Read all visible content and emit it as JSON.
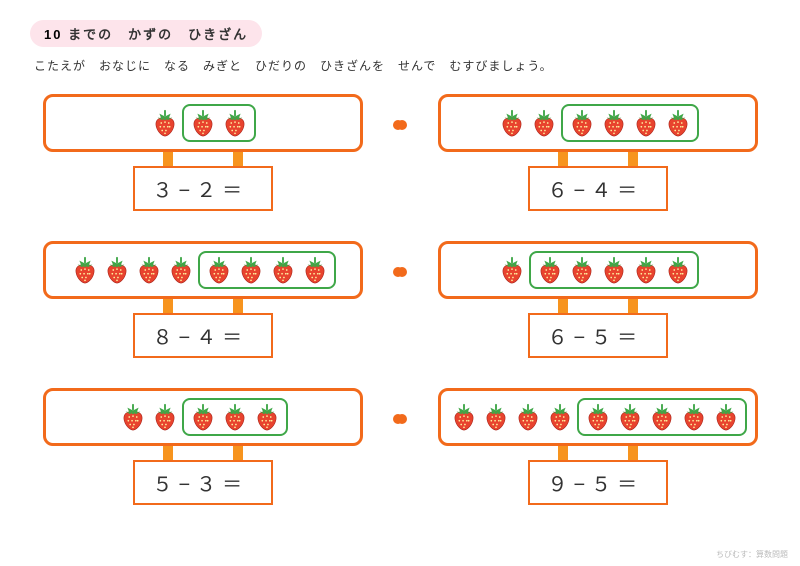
{
  "title_prefix": "10",
  "title_rest": " までの　かずの　ひきざん",
  "instruction": "こたえが　おなじに　なる　みぎと　ひだりの　ひきざんを　せんで　むすびましょう。",
  "colors": {
    "border": "#f26a1b",
    "leg": "#f7941e",
    "dot": "#f26a1b",
    "group": "#3fa748",
    "straw_body": "#e8432e",
    "straw_seed": "#fff3a0",
    "straw_leaf": "#3fa748",
    "title_bg": "#fde4eb"
  },
  "berry_size": 30,
  "problems": [
    {
      "side": "left",
      "total": 3,
      "sub": 2,
      "eq": "３−２＝"
    },
    {
      "side": "right",
      "total": 6,
      "sub": 4,
      "eq": "６−４＝"
    },
    {
      "side": "left",
      "total": 8,
      "sub": 4,
      "eq": "８−４＝"
    },
    {
      "side": "right",
      "total": 6,
      "sub": 5,
      "eq": "６−５＝"
    },
    {
      "side": "left",
      "total": 5,
      "sub": 3,
      "eq": "５−３＝"
    },
    {
      "side": "right",
      "total": 9,
      "sub": 5,
      "eq": "９−５＝"
    }
  ],
  "footer": "ちびむす：算数問題"
}
